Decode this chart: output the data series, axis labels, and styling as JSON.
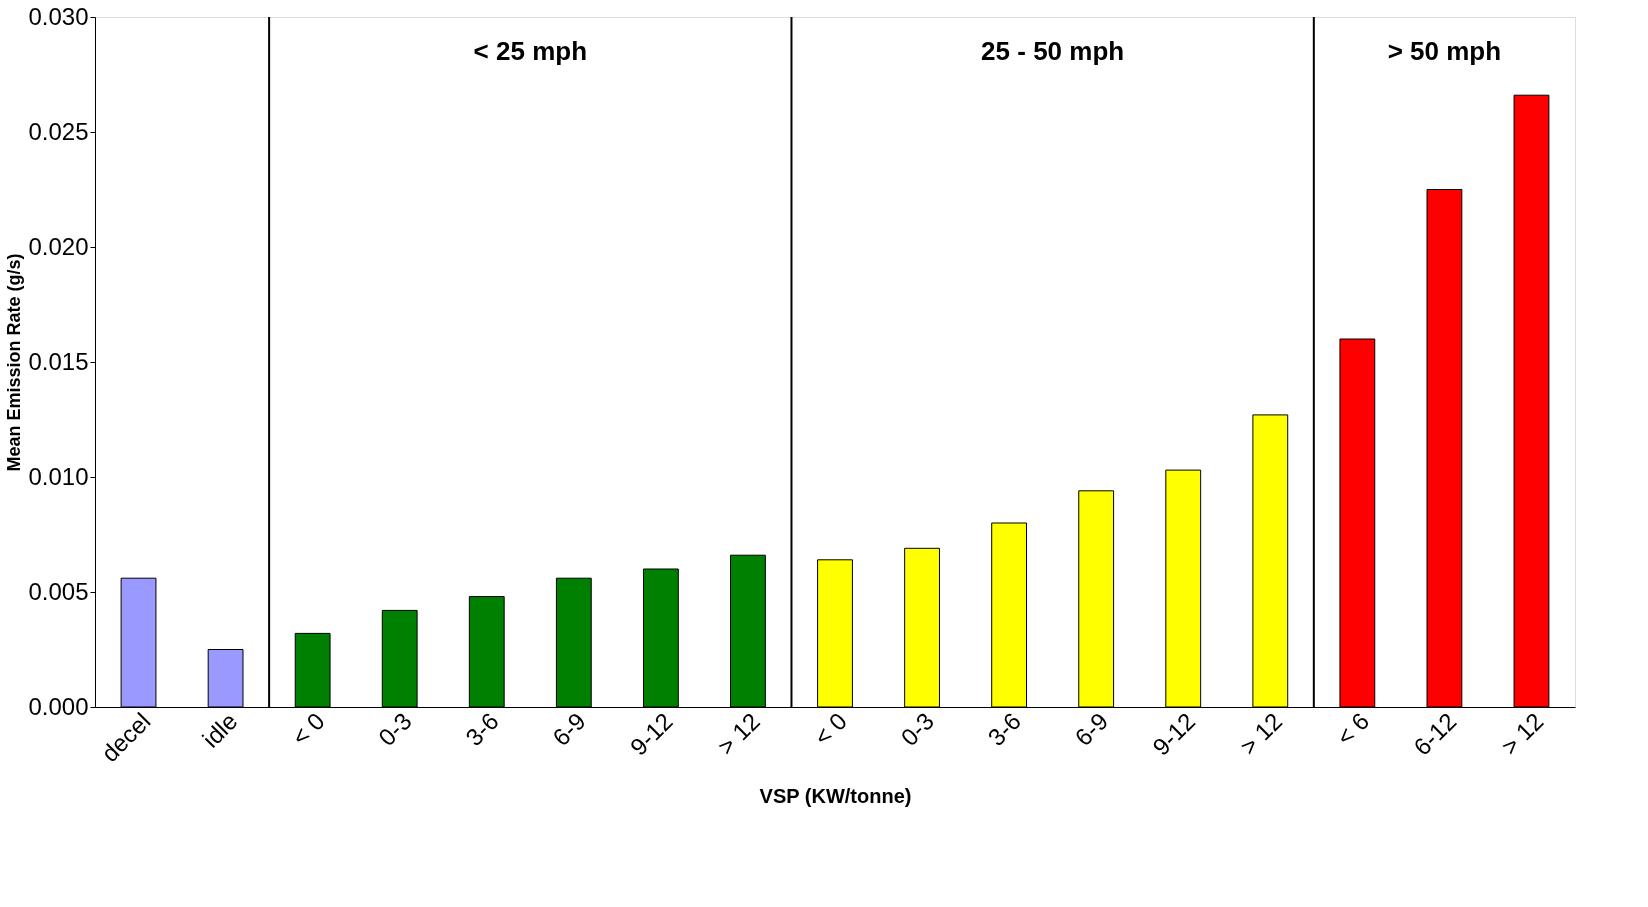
{
  "chart_data": {
    "type": "bar",
    "xlabel": "VSP (KW/tonne)",
    "ylabel": "Mean Emission Rate (g/s)",
    "categories": [
      "decel",
      "idle",
      "< 0",
      "0-3",
      "3-6",
      "6-9",
      "9-12",
      "> 12",
      "< 0",
      "0-3",
      "3-6",
      "6-9",
      "9-12",
      "> 12",
      "< 6",
      "6-12",
      "> 12"
    ],
    "series": [
      {
        "color": "#9999ff",
        "values": [
          0.0056,
          0.0025,
          null,
          null,
          null,
          null,
          null,
          null,
          null,
          null,
          null,
          null,
          null,
          null,
          null,
          null,
          null
        ]
      },
      {
        "color": "#008000",
        "values": [
          null,
          null,
          0.0032,
          0.0042,
          0.0048,
          0.0056,
          0.006,
          0.0066,
          null,
          null,
          null,
          null,
          null,
          null,
          null,
          null,
          null
        ]
      },
      {
        "color": "#ffff00",
        "values": [
          null,
          null,
          null,
          null,
          null,
          null,
          null,
          null,
          0.0064,
          0.0069,
          0.008,
          0.0094,
          0.0103,
          0.0127,
          null,
          null,
          null
        ]
      },
      {
        "color": "#ff0000",
        "values": [
          null,
          null,
          null,
          null,
          null,
          null,
          null,
          null,
          null,
          null,
          null,
          null,
          null,
          null,
          0.016,
          0.0225,
          0.0266
        ]
      }
    ],
    "annotations": [
      "< 25 mph",
      "25 - 50 mph",
      "> 50 mph"
    ],
    "ylim": [
      0,
      0.03
    ],
    "yticks": [
      {
        "value": 0,
        "label": "0.000"
      },
      {
        "value": 0.005,
        "label": "0.005"
      },
      {
        "value": 0.01,
        "label": "0.010"
      },
      {
        "value": 0.015,
        "label": "0.015"
      },
      {
        "value": 0.02,
        "label": "0.020"
      },
      {
        "value": 0.025,
        "label": "0.025"
      },
      {
        "value": 0.03,
        "label": "0.030"
      }
    ],
    "grid": false
  }
}
